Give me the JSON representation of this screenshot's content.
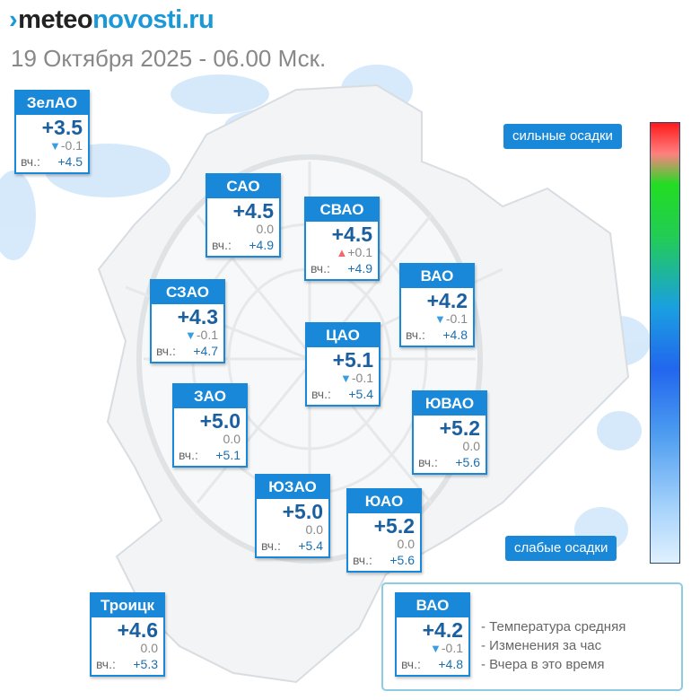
{
  "header": {
    "logo_mark": "›",
    "logo_part1": "meteo",
    "logo_part2": "novosti.ru",
    "date": "19 Октября 2025 - 06.00 Мск."
  },
  "colors": {
    "card_blue": "#1a88d8",
    "value_dark_blue": "#1a5fa0",
    "arrow_down": "#3a9de0",
    "arrow_up": "#f06a6a"
  },
  "districts": [
    {
      "name": "ЗелАО",
      "temp": "+3.5",
      "trend": "down",
      "change": "-0.1",
      "yesterday_label": "вч.:",
      "yesterday": "+4.5"
    },
    {
      "name": "САО",
      "temp": "+4.5",
      "trend": "none",
      "change": "0.0",
      "yesterday_label": "вч.:",
      "yesterday": "+4.9"
    },
    {
      "name": "СВАО",
      "temp": "+4.5",
      "trend": "up",
      "change": "+0.1",
      "yesterday_label": "вч.:",
      "yesterday": "+4.9"
    },
    {
      "name": "ВАО",
      "temp": "+4.2",
      "trend": "down",
      "change": "-0.1",
      "yesterday_label": "вч.:",
      "yesterday": "+4.8"
    },
    {
      "name": "СЗАО",
      "temp": "+4.3",
      "trend": "down",
      "change": "-0.1",
      "yesterday_label": "вч.:",
      "yesterday": "+4.7"
    },
    {
      "name": "ЦАО",
      "temp": "+5.1",
      "trend": "down",
      "change": "-0.1",
      "yesterday_label": "вч.:",
      "yesterday": "+5.4"
    },
    {
      "name": "ЗАО",
      "temp": "+5.0",
      "trend": "none",
      "change": "0.0",
      "yesterday_label": "вч.:",
      "yesterday": "+5.1"
    },
    {
      "name": "ЮВАО",
      "temp": "+5.2",
      "trend": "none",
      "change": "0.0",
      "yesterday_label": "вч.:",
      "yesterday": "+5.6"
    },
    {
      "name": "ЮЗАО",
      "temp": "+5.0",
      "trend": "none",
      "change": "0.0",
      "yesterday_label": "вч.:",
      "yesterday": "+5.4"
    },
    {
      "name": "ЮАО",
      "temp": "+5.2",
      "trend": "none",
      "change": "0.0",
      "yesterday_label": "вч.:",
      "yesterday": "+5.6"
    },
    {
      "name": "Троицк",
      "temp": "+4.6",
      "trend": "none",
      "change": "0.0",
      "yesterday_label": "вч.:",
      "yesterday": "+5.3"
    }
  ],
  "scale": {
    "top_label": "сильные осадки",
    "bottom_label": "слабые осадки"
  },
  "legend": {
    "sample": {
      "name": "ВАО",
      "temp": "+4.2",
      "trend": "down",
      "change": "-0.1",
      "yesterday_label": "вч.:",
      "yesterday": "+4.8"
    },
    "line1": "- Температура средняя",
    "line2": "- Изменения за час",
    "line3": "- Вчера в это время"
  }
}
